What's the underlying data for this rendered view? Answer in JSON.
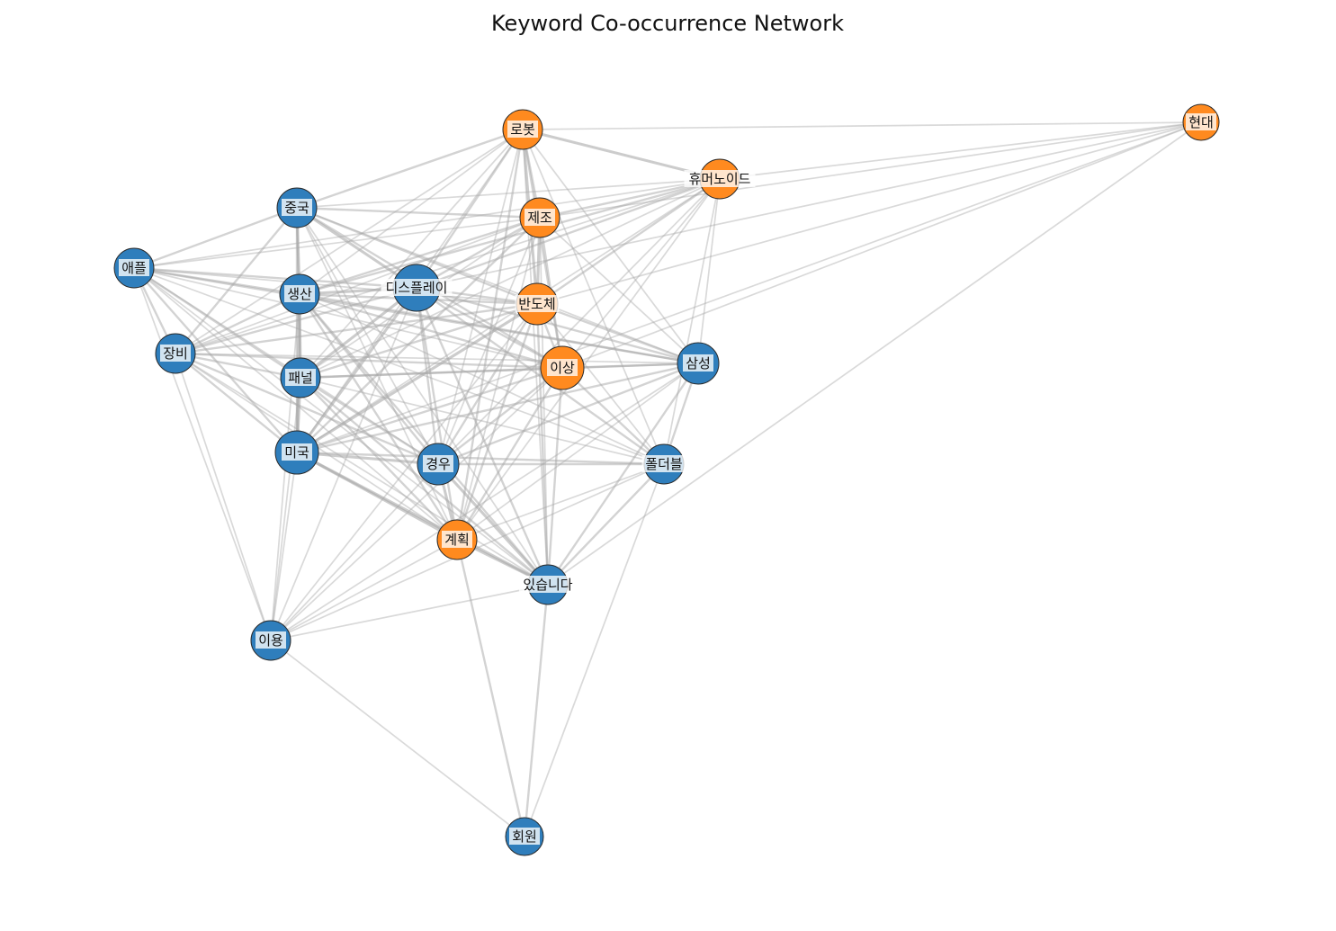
{
  "title": "Keyword Co-occurrence Network",
  "colors": {
    "group_a": "#2f7ebc",
    "group_b": "#ff8a1f",
    "edge": "#a8a8a8"
  },
  "nodes": [
    {
      "id": "robot",
      "label": "로봇",
      "group": "b"
    },
    {
      "id": "hyundai",
      "label": "현대",
      "group": "b"
    },
    {
      "id": "humanoid",
      "label": "휴머노이드",
      "group": "b"
    },
    {
      "id": "manufacture",
      "label": "제조",
      "group": "b"
    },
    {
      "id": "china",
      "label": "중국",
      "group": "a"
    },
    {
      "id": "apple",
      "label": "애플",
      "group": "a"
    },
    {
      "id": "production",
      "label": "생산",
      "group": "a"
    },
    {
      "id": "display",
      "label": "디스플레이",
      "group": "a"
    },
    {
      "id": "semiconductor",
      "label": "반도체",
      "group": "b"
    },
    {
      "id": "equipment",
      "label": "장비",
      "group": "a"
    },
    {
      "id": "panel",
      "label": "패널",
      "group": "a"
    },
    {
      "id": "above",
      "label": "이상",
      "group": "b"
    },
    {
      "id": "samsung",
      "label": "삼성",
      "group": "a"
    },
    {
      "id": "usa",
      "label": "미국",
      "group": "a"
    },
    {
      "id": "case",
      "label": "경우",
      "group": "a"
    },
    {
      "id": "foldable",
      "label": "폴더블",
      "group": "a"
    },
    {
      "id": "plan",
      "label": "계획",
      "group": "b"
    },
    {
      "id": "exists",
      "label": "있습니다",
      "group": "a"
    },
    {
      "id": "usage",
      "label": "이용",
      "group": "a"
    },
    {
      "id": "member",
      "label": "회원",
      "group": "a"
    }
  ],
  "edges": [
    {
      "source": "robot",
      "target": "hyundai",
      "weight": 1
    },
    {
      "source": "robot",
      "target": "humanoid",
      "weight": 3
    },
    {
      "source": "robot",
      "target": "manufacture",
      "weight": 2
    },
    {
      "source": "robot",
      "target": "china",
      "weight": 2
    },
    {
      "source": "robot",
      "target": "production",
      "weight": 1
    },
    {
      "source": "robot",
      "target": "display",
      "weight": 2
    },
    {
      "source": "robot",
      "target": "semiconductor",
      "weight": 3
    },
    {
      "source": "robot",
      "target": "above",
      "weight": 2
    },
    {
      "source": "robot",
      "target": "samsung",
      "weight": 1
    },
    {
      "source": "robot",
      "target": "panel",
      "weight": 1
    },
    {
      "source": "robot",
      "target": "usa",
      "weight": 1
    },
    {
      "source": "robot",
      "target": "case",
      "weight": 1
    },
    {
      "source": "robot",
      "target": "plan",
      "weight": 2
    },
    {
      "source": "robot",
      "target": "exists",
      "weight": 1
    },
    {
      "source": "robot",
      "target": "equipment",
      "weight": 1
    },
    {
      "source": "robot",
      "target": "foldable",
      "weight": 1
    },
    {
      "source": "hyundai",
      "target": "humanoid",
      "weight": 1
    },
    {
      "source": "hyundai",
      "target": "manufacture",
      "weight": 1
    },
    {
      "source": "hyundai",
      "target": "display",
      "weight": 1
    },
    {
      "source": "hyundai",
      "target": "semiconductor",
      "weight": 1
    },
    {
      "source": "hyundai",
      "target": "above",
      "weight": 1
    },
    {
      "source": "hyundai",
      "target": "usa",
      "weight": 1
    },
    {
      "source": "hyundai",
      "target": "exists",
      "weight": 1
    },
    {
      "source": "humanoid",
      "target": "manufacture",
      "weight": 2
    },
    {
      "source": "humanoid",
      "target": "china",
      "weight": 1
    },
    {
      "source": "humanoid",
      "target": "production",
      "weight": 2
    },
    {
      "source": "humanoid",
      "target": "display",
      "weight": 2
    },
    {
      "source": "humanoid",
      "target": "semiconductor",
      "weight": 2
    },
    {
      "source": "humanoid",
      "target": "above",
      "weight": 1
    },
    {
      "source": "humanoid",
      "target": "samsung",
      "weight": 1
    },
    {
      "source": "humanoid",
      "target": "equipment",
      "weight": 1
    },
    {
      "source": "humanoid",
      "target": "panel",
      "weight": 1
    },
    {
      "source": "humanoid",
      "target": "usa",
      "weight": 1
    },
    {
      "source": "humanoid",
      "target": "case",
      "weight": 1
    },
    {
      "source": "humanoid",
      "target": "plan",
      "weight": 1
    },
    {
      "source": "humanoid",
      "target": "foldable",
      "weight": 1
    },
    {
      "source": "humanoid",
      "target": "apple",
      "weight": 1
    },
    {
      "source": "manufacture",
      "target": "china",
      "weight": 2
    },
    {
      "source": "manufacture",
      "target": "production",
      "weight": 2
    },
    {
      "source": "manufacture",
      "target": "display",
      "weight": 2
    },
    {
      "source": "manufacture",
      "target": "semiconductor",
      "weight": 3
    },
    {
      "source": "manufacture",
      "target": "above",
      "weight": 2
    },
    {
      "source": "manufacture",
      "target": "samsung",
      "weight": 1
    },
    {
      "source": "manufacture",
      "target": "apple",
      "weight": 1
    },
    {
      "source": "manufacture",
      "target": "equipment",
      "weight": 1
    },
    {
      "source": "manufacture",
      "target": "panel",
      "weight": 1
    },
    {
      "source": "manufacture",
      "target": "usa",
      "weight": 2
    },
    {
      "source": "manufacture",
      "target": "case",
      "weight": 1
    },
    {
      "source": "manufacture",
      "target": "plan",
      "weight": 1
    },
    {
      "source": "manufacture",
      "target": "exists",
      "weight": 1
    },
    {
      "source": "china",
      "target": "apple",
      "weight": 2
    },
    {
      "source": "china",
      "target": "production",
      "weight": 3
    },
    {
      "source": "china",
      "target": "display",
      "weight": 3
    },
    {
      "source": "china",
      "target": "semiconductor",
      "weight": 2
    },
    {
      "source": "china",
      "target": "equipment",
      "weight": 2
    },
    {
      "source": "china",
      "target": "panel",
      "weight": 2
    },
    {
      "source": "china",
      "target": "above",
      "weight": 2
    },
    {
      "source": "china",
      "target": "samsung",
      "weight": 1
    },
    {
      "source": "china",
      "target": "usa",
      "weight": 2
    },
    {
      "source": "china",
      "target": "case",
      "weight": 1
    },
    {
      "source": "china",
      "target": "plan",
      "weight": 1
    },
    {
      "source": "china",
      "target": "exists",
      "weight": 1
    },
    {
      "source": "apple",
      "target": "production",
      "weight": 2
    },
    {
      "source": "apple",
      "target": "display",
      "weight": 2
    },
    {
      "source": "apple",
      "target": "semiconductor",
      "weight": 1
    },
    {
      "source": "apple",
      "target": "equipment",
      "weight": 2
    },
    {
      "source": "apple",
      "target": "panel",
      "weight": 2
    },
    {
      "source": "apple",
      "target": "above",
      "weight": 1
    },
    {
      "source": "apple",
      "target": "samsung",
      "weight": 2
    },
    {
      "source": "apple",
      "target": "usa",
      "weight": 2
    },
    {
      "source": "apple",
      "target": "case",
      "weight": 1
    },
    {
      "source": "apple",
      "target": "plan",
      "weight": 1
    },
    {
      "source": "apple",
      "target": "exists",
      "weight": 1
    },
    {
      "source": "apple",
      "target": "usage",
      "weight": 1
    },
    {
      "source": "apple",
      "target": "foldable",
      "weight": 1
    },
    {
      "source": "production",
      "target": "display",
      "weight": 3
    },
    {
      "source": "production",
      "target": "semiconductor",
      "weight": 2
    },
    {
      "source": "production",
      "target": "equipment",
      "weight": 2
    },
    {
      "source": "production",
      "target": "panel",
      "weight": 3
    },
    {
      "source": "production",
      "target": "above",
      "weight": 2
    },
    {
      "source": "production",
      "target": "samsung",
      "weight": 2
    },
    {
      "source": "production",
      "target": "usa",
      "weight": 3
    },
    {
      "source": "production",
      "target": "case",
      "weight": 2
    },
    {
      "source": "production",
      "target": "foldable",
      "weight": 1
    },
    {
      "source": "production",
      "target": "plan",
      "weight": 2
    },
    {
      "source": "production",
      "target": "exists",
      "weight": 2
    },
    {
      "source": "production",
      "target": "usage",
      "weight": 1
    },
    {
      "source": "display",
      "target": "semiconductor",
      "weight": 2
    },
    {
      "source": "display",
      "target": "equipment",
      "weight": 2
    },
    {
      "source": "display",
      "target": "panel",
      "weight": 3
    },
    {
      "source": "display",
      "target": "above",
      "weight": 2
    },
    {
      "source": "display",
      "target": "samsung",
      "weight": 2
    },
    {
      "source": "display",
      "target": "usa",
      "weight": 3
    },
    {
      "source": "display",
      "target": "case",
      "weight": 2
    },
    {
      "source": "display",
      "target": "foldable",
      "weight": 2
    },
    {
      "source": "display",
      "target": "plan",
      "weight": 2
    },
    {
      "source": "display",
      "target": "exists",
      "weight": 2
    },
    {
      "source": "display",
      "target": "usage",
      "weight": 1
    },
    {
      "source": "semiconductor",
      "target": "equipment",
      "weight": 2
    },
    {
      "source": "semiconductor",
      "target": "panel",
      "weight": 2
    },
    {
      "source": "semiconductor",
      "target": "above",
      "weight": 2
    },
    {
      "source": "semiconductor",
      "target": "samsung",
      "weight": 2
    },
    {
      "source": "semiconductor",
      "target": "usa",
      "weight": 3
    },
    {
      "source": "semiconductor",
      "target": "case",
      "weight": 2
    },
    {
      "source": "semiconductor",
      "target": "foldable",
      "weight": 1
    },
    {
      "source": "semiconductor",
      "target": "plan",
      "weight": 2
    },
    {
      "source": "semiconductor",
      "target": "exists",
      "weight": 2
    },
    {
      "source": "semiconductor",
      "target": "usage",
      "weight": 1
    },
    {
      "source": "equipment",
      "target": "panel",
      "weight": 2
    },
    {
      "source": "equipment",
      "target": "above",
      "weight": 2
    },
    {
      "source": "equipment",
      "target": "samsung",
      "weight": 1
    },
    {
      "source": "equipment",
      "target": "usa",
      "weight": 2
    },
    {
      "source": "equipment",
      "target": "case",
      "weight": 2
    },
    {
      "source": "equipment",
      "target": "plan",
      "weight": 1
    },
    {
      "source": "equipment",
      "target": "exists",
      "weight": 1
    },
    {
      "source": "equipment",
      "target": "usage",
      "weight": 1
    },
    {
      "source": "panel",
      "target": "above",
      "weight": 2
    },
    {
      "source": "panel",
      "target": "samsung",
      "weight": 2
    },
    {
      "source": "panel",
      "target": "usa",
      "weight": 3
    },
    {
      "source": "panel",
      "target": "case",
      "weight": 2
    },
    {
      "source": "panel",
      "target": "foldable",
      "weight": 1
    },
    {
      "source": "panel",
      "target": "plan",
      "weight": 2
    },
    {
      "source": "panel",
      "target": "exists",
      "weight": 2
    },
    {
      "source": "panel",
      "target": "usage",
      "weight": 1
    },
    {
      "source": "above",
      "target": "samsung",
      "weight": 2
    },
    {
      "source": "above",
      "target": "usa",
      "weight": 2
    },
    {
      "source": "above",
      "target": "case",
      "weight": 2
    },
    {
      "source": "above",
      "target": "foldable",
      "weight": 2
    },
    {
      "source": "above",
      "target": "plan",
      "weight": 2
    },
    {
      "source": "above",
      "target": "exists",
      "weight": 2
    },
    {
      "source": "above",
      "target": "usage",
      "weight": 1
    },
    {
      "source": "samsung",
      "target": "usa",
      "weight": 2
    },
    {
      "source": "samsung",
      "target": "case",
      "weight": 2
    },
    {
      "source": "samsung",
      "target": "foldable",
      "weight": 2
    },
    {
      "source": "samsung",
      "target": "plan",
      "weight": 1
    },
    {
      "source": "samsung",
      "target": "exists",
      "weight": 2
    },
    {
      "source": "samsung",
      "target": "usage",
      "weight": 1
    },
    {
      "source": "usa",
      "target": "case",
      "weight": 3
    },
    {
      "source": "usa",
      "target": "foldable",
      "weight": 2
    },
    {
      "source": "usa",
      "target": "plan",
      "weight": 3
    },
    {
      "source": "usa",
      "target": "exists",
      "weight": 3
    },
    {
      "source": "usa",
      "target": "usage",
      "weight": 1
    },
    {
      "source": "case",
      "target": "foldable",
      "weight": 2
    },
    {
      "source": "case",
      "target": "plan",
      "weight": 3
    },
    {
      "source": "case",
      "target": "exists",
      "weight": 3
    },
    {
      "source": "case",
      "target": "usage",
      "weight": 1
    },
    {
      "source": "foldable",
      "target": "plan",
      "weight": 1
    },
    {
      "source": "foldable",
      "target": "exists",
      "weight": 2
    },
    {
      "source": "foldable",
      "target": "usage",
      "weight": 1
    },
    {
      "source": "foldable",
      "target": "member",
      "weight": 1
    },
    {
      "source": "plan",
      "target": "exists",
      "weight": 3
    },
    {
      "source": "plan",
      "target": "usage",
      "weight": 1
    },
    {
      "source": "plan",
      "target": "member",
      "weight": 2
    },
    {
      "source": "exists",
      "target": "usage",
      "weight": 1
    },
    {
      "source": "exists",
      "target": "member",
      "weight": 2
    },
    {
      "source": "usage",
      "target": "member",
      "weight": 1
    }
  ]
}
